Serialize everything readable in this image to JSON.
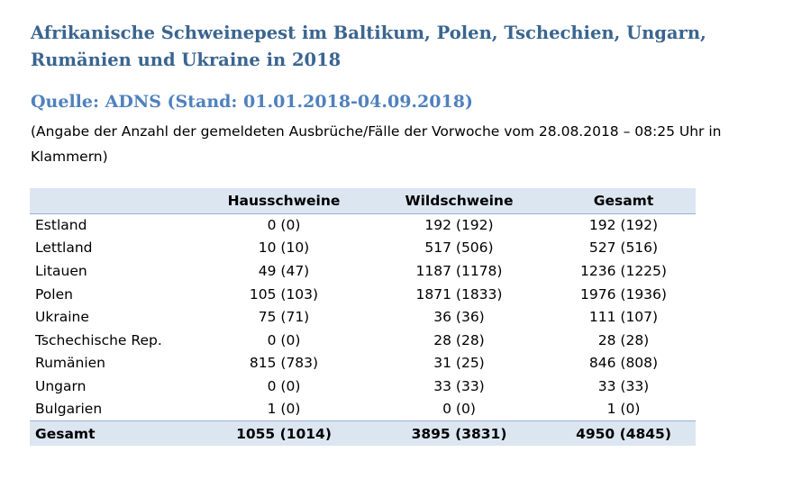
{
  "title": "Afrikanische Schweinepest im Baltikum, Polen, Tschechien, Ungarn, Rumänien und Ukraine in 2018",
  "source": "Quelle: ADNS (Stand:  01.01.2018-04.09.2018)",
  "note": "(Angabe der Anzahl der gemeldeten Ausbrüche/Fälle der Vorwoche vom 28.08.2018 – 08:25 Uhr in Klammern)",
  "colors": {
    "title": "#3a6590",
    "source": "#4f81bd",
    "table_band": "#dce6f1"
  },
  "table": {
    "headers": [
      "",
      "Hausschweine",
      "Wildschweine",
      "Gesamt"
    ],
    "rows": [
      {
        "country": "Estland",
        "domestic": "0 (0)",
        "wild": "192 (192)",
        "total": "192 (192)"
      },
      {
        "country": "Lettland",
        "domestic": "10 (10)",
        "wild": "517 (506)",
        "total": "527 (516)"
      },
      {
        "country": "Litauen",
        "domestic": "49 (47)",
        "wild": "1187 (1178)",
        "total": "1236 (1225)"
      },
      {
        "country": "Polen",
        "domestic": "105 (103)",
        "wild": "1871 (1833)",
        "total": "1976 (1936)"
      },
      {
        "country": "Ukraine",
        "domestic": "75 (71)",
        "wild": "36 (36)",
        "total": "111 (107)"
      },
      {
        "country": "Tschechische Rep.",
        "domestic": "0 (0)",
        "wild": "28 (28)",
        "total": "28 (28)"
      },
      {
        "country": "Rumänien",
        "domestic": "815 (783)",
        "wild": "31 (25)",
        "total": "846 (808)"
      },
      {
        "country": "Ungarn",
        "domestic": "0 (0)",
        "wild": "33 (33)",
        "total": "33 (33)"
      },
      {
        "country": "Bulgarien",
        "domestic": "1 (0)",
        "wild": "0 (0)",
        "total": "1 (0)"
      }
    ],
    "footer": {
      "label": "Gesamt",
      "domestic": "1055 (1014)",
      "wild": "3895 (3831)",
      "total": "4950 (4845)"
    }
  }
}
